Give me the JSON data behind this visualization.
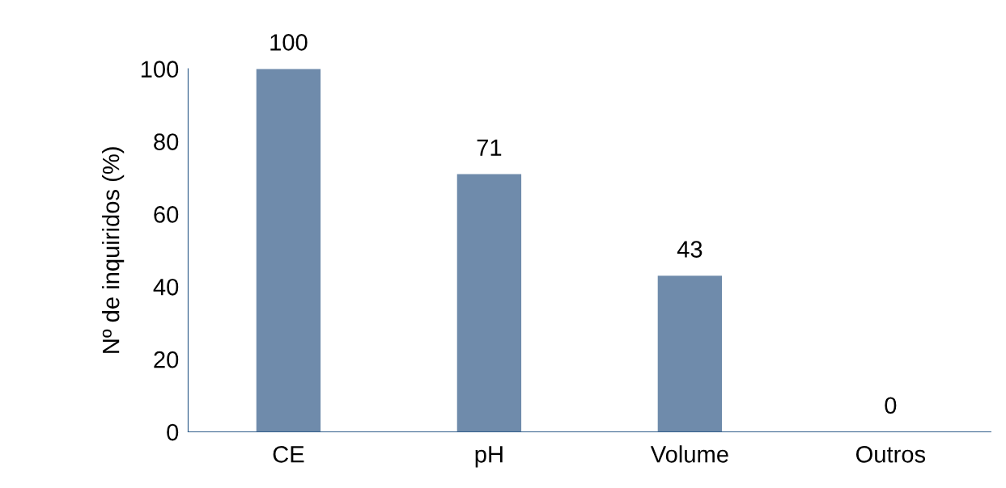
{
  "chart_data": {
    "type": "bar",
    "ylabel": "Nº de inquiridos (%)",
    "categories": [
      "CE",
      "pH",
      "Volume",
      "Outros"
    ],
    "values": [
      100,
      71,
      43,
      0
    ],
    "color": "#6f8bab",
    "ylim": [
      0,
      100
    ],
    "yticks": [
      0,
      20,
      40,
      60,
      80,
      100
    ],
    "data_labels": true,
    "grid": false,
    "legend": false
  }
}
